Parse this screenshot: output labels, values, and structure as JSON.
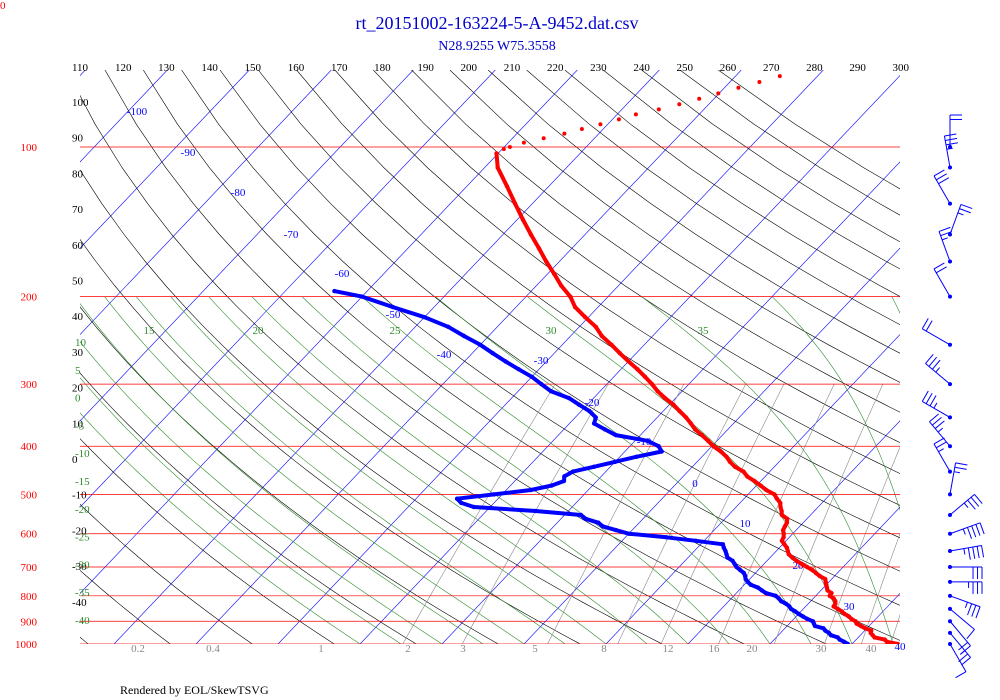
{
  "corner_label": "0",
  "footer": "Rendered by EOL/SkewTSVG",
  "chart_data": {
    "type": "skew-t",
    "title": "rt_20151002-163224-5-A-9452.dat.csv",
    "subtitle": "N28.9255 W75.3558",
    "colors": {
      "temperature": "#ff0000",
      "dewpoint": "#0000ff",
      "isobar": "#ff0000",
      "isotherm": "#0000ff",
      "dry_adiabat": "#000000",
      "moist_adiabat": "#2e8b2e",
      "mixing_ratio": "#888888",
      "wind_barb": "#0000ff"
    },
    "pressure_labels": [
      "100",
      "200",
      "300",
      "400",
      "500",
      "600",
      "700",
      "800",
      "900",
      "1000"
    ],
    "temp_labels": [
      "-100",
      "-90",
      "-80",
      "-70",
      "-60",
      "-50",
      "-40",
      "-30",
      "-20",
      "-10",
      "0",
      "10",
      "20",
      "30",
      "40"
    ],
    "theta_labels": [
      "110",
      "120",
      "130",
      "140",
      "150",
      "160",
      "170",
      "180",
      "190",
      "200",
      "210",
      "220",
      "230",
      "240",
      "250",
      "260",
      "270",
      "280",
      "290",
      "300"
    ],
    "left_labels": [
      "100",
      "90",
      "80",
      "70",
      "60",
      "50",
      "40",
      "30",
      "20",
      "10",
      "0",
      "-10",
      "-20",
      "-30",
      "-40"
    ],
    "moist_labels": [
      "15",
      "20",
      "25",
      "30",
      "35"
    ],
    "left_moist_labels": [
      "10",
      "5",
      "0",
      "-5",
      "-10",
      "-15",
      "-20",
      "-25",
      "-30",
      "-35",
      "-40"
    ],
    "mixing_labels": [
      "0.2",
      "0.4",
      "1",
      "2",
      "3",
      "5",
      "8",
      "12",
      "16",
      "20",
      "30",
      "40"
    ],
    "temperature_profile": [
      [
        1000,
        25.6
      ],
      [
        990,
        24
      ],
      [
        980,
        23.5
      ],
      [
        970,
        22
      ],
      [
        960,
        21.5
      ],
      [
        950,
        21
      ],
      [
        940,
        20.8
      ],
      [
        930,
        19.8
      ],
      [
        920,
        19
      ],
      [
        910,
        18.2
      ],
      [
        900,
        17.8
      ],
      [
        890,
        17
      ],
      [
        880,
        16.4
      ],
      [
        870,
        15.6
      ],
      [
        860,
        15
      ],
      [
        850,
        14.2
      ],
      [
        840,
        13.4
      ],
      [
        830,
        13.3
      ],
      [
        820,
        13
      ],
      [
        810,
        12.5
      ],
      [
        800,
        11.7
      ],
      [
        790,
        11.6
      ],
      [
        780,
        10.8
      ],
      [
        770,
        10.4
      ],
      [
        760,
        10
      ],
      [
        750,
        9.6
      ],
      [
        740,
        9.2
      ],
      [
        730,
        8.2
      ],
      [
        720,
        7.4
      ],
      [
        710,
        6.6
      ],
      [
        700,
        5.6
      ],
      [
        690,
        4.6
      ],
      [
        680,
        3.6
      ],
      [
        670,
        2.7
      ],
      [
        660,
        1.9
      ],
      [
        650,
        1.4
      ],
      [
        640,
        0.9
      ],
      [
        630,
        0.2
      ],
      [
        620,
        -0.5
      ],
      [
        610,
        -0.7
      ],
      [
        600,
        -1.1
      ],
      [
        590,
        -1.6
      ],
      [
        580,
        -1.8
      ],
      [
        570,
        -2
      ],
      [
        560,
        -2.4
      ],
      [
        550,
        -3.5
      ],
      [
        540,
        -4
      ],
      [
        530,
        -4.6
      ],
      [
        520,
        -5.1
      ],
      [
        510,
        -6
      ],
      [
        500,
        -6.8
      ],
      [
        490,
        -8.3
      ],
      [
        480,
        -9.5
      ],
      [
        470,
        -10.8
      ],
      [
        460,
        -12.2
      ],
      [
        450,
        -13.2
      ],
      [
        440,
        -14.8
      ],
      [
        430,
        -16
      ],
      [
        420,
        -17
      ],
      [
        410,
        -18.3
      ],
      [
        400,
        -19.8
      ],
      [
        390,
        -21.1
      ],
      [
        380,
        -22.5
      ],
      [
        370,
        -24
      ],
      [
        360,
        -25.2
      ],
      [
        350,
        -26.5
      ],
      [
        340,
        -28
      ],
      [
        330,
        -29.5
      ],
      [
        320,
        -31.3
      ],
      [
        310,
        -33
      ],
      [
        300,
        -34.5
      ],
      [
        290,
        -36.2
      ],
      [
        280,
        -38
      ],
      [
        270,
        -40
      ],
      [
        260,
        -42
      ],
      [
        250,
        -44
      ],
      [
        240,
        -46.2
      ],
      [
        230,
        -48
      ],
      [
        220,
        -50.4
      ],
      [
        210,
        -52.8
      ],
      [
        200,
        -54.6
      ],
      [
        190,
        -57
      ],
      [
        180,
        -59.2
      ],
      [
        170,
        -61.6
      ],
      [
        160,
        -64
      ],
      [
        150,
        -66.6
      ],
      [
        140,
        -69.3
      ],
      [
        130,
        -72.1
      ],
      [
        120,
        -75.1
      ],
      [
        110,
        -78.4
      ],
      [
        103,
        -80.2
      ]
    ],
    "temperature_strat": [
      [
        101,
        -79.8
      ],
      [
        100,
        -79.3
      ],
      [
        98,
        -78.1
      ],
      [
        96,
        -76.2
      ],
      [
        94,
        -74.2
      ],
      [
        92,
        -72.6
      ],
      [
        90,
        -70.9
      ],
      [
        88,
        -69.2
      ],
      [
        86,
        -67.7
      ],
      [
        84,
        -65.5
      ],
      [
        82,
        -63.6
      ],
      [
        80,
        -61.8
      ],
      [
        78,
        -60.1
      ],
      [
        76,
        -58.3
      ],
      [
        74,
        -56.4
      ],
      [
        72,
        -54.6
      ]
    ],
    "dewpoint_profile": [
      [
        1000,
        19.5
      ],
      [
        990,
        18.8
      ],
      [
        980,
        18
      ],
      [
        970,
        17.5
      ],
      [
        960,
        16.4
      ],
      [
        950,
        15.9
      ],
      [
        940,
        15.2
      ],
      [
        930,
        14.7
      ],
      [
        920,
        13.4
      ],
      [
        910,
        13
      ],
      [
        900,
        12.6
      ],
      [
        890,
        11.6
      ],
      [
        880,
        10.8
      ],
      [
        870,
        10
      ],
      [
        860,
        9.3
      ],
      [
        850,
        8.5
      ],
      [
        840,
        8
      ],
      [
        830,
        7.3
      ],
      [
        820,
        6.4
      ],
      [
        810,
        5.8
      ],
      [
        800,
        5.1
      ],
      [
        790,
        3.6
      ],
      [
        780,
        2.8
      ],
      [
        770,
        2
      ],
      [
        760,
        0.8
      ],
      [
        750,
        0.1
      ],
      [
        740,
        -0.5
      ],
      [
        730,
        -0.9
      ],
      [
        720,
        -1.4
      ],
      [
        710,
        -2.2
      ],
      [
        700,
        -3
      ],
      [
        690,
        -3.6
      ],
      [
        680,
        -4.2
      ],
      [
        670,
        -5.2
      ],
      [
        660,
        -5.7
      ],
      [
        650,
        -6.2
      ],
      [
        640,
        -6.8
      ],
      [
        630,
        -7.3
      ],
      [
        620,
        -11
      ],
      [
        610,
        -15
      ],
      [
        600,
        -20
      ],
      [
        590,
        -22
      ],
      [
        580,
        -24
      ],
      [
        570,
        -25
      ],
      [
        560,
        -27
      ],
      [
        550,
        -28
      ],
      [
        540,
        -34
      ],
      [
        530,
        -42
      ],
      [
        520,
        -44
      ],
      [
        510,
        -45
      ],
      [
        500,
        -41
      ],
      [
        490,
        -37
      ],
      [
        480,
        -35
      ],
      [
        470,
        -34
      ],
      [
        460,
        -34.5
      ],
      [
        450,
        -34
      ],
      [
        440,
        -32
      ],
      [
        430,
        -30
      ],
      [
        420,
        -28
      ],
      [
        410,
        -25.5
      ],
      [
        400,
        -26.5
      ],
      [
        390,
        -28.5
      ],
      [
        380,
        -33
      ],
      [
        370,
        -35
      ],
      [
        360,
        -37
      ],
      [
        350,
        -37.5
      ],
      [
        340,
        -39
      ],
      [
        330,
        -41
      ],
      [
        320,
        -43
      ],
      [
        310,
        -46
      ],
      [
        300,
        -48
      ],
      [
        290,
        -50
      ],
      [
        280,
        -52.5
      ],
      [
        270,
        -55
      ],
      [
        260,
        -57.5
      ],
      [
        250,
        -60
      ],
      [
        240,
        -63
      ],
      [
        230,
        -66
      ],
      [
        220,
        -70
      ],
      [
        210,
        -75
      ],
      [
        200,
        -80
      ],
      [
        195,
        -84
      ]
    ],
    "wind_barbs": [
      [
        1000,
        150,
        10
      ],
      [
        950,
        140,
        15
      ],
      [
        900,
        140,
        20
      ],
      [
        850,
        130,
        10
      ],
      [
        800,
        110,
        25
      ],
      [
        750,
        90,
        25
      ],
      [
        700,
        90,
        30
      ],
      [
        650,
        80,
        35
      ],
      [
        600,
        70,
        35
      ],
      [
        550,
        50,
        25
      ],
      [
        500,
        10,
        15
      ],
      [
        450,
        330,
        15
      ],
      [
        400,
        320,
        25
      ],
      [
        350,
        300,
        25
      ],
      [
        300,
        310,
        25
      ],
      [
        250,
        300,
        20
      ],
      [
        200,
        330,
        20
      ],
      [
        170,
        340,
        15
      ],
      [
        150,
        20,
        15
      ],
      [
        130,
        330,
        30
      ],
      [
        110,
        350,
        25
      ],
      [
        100,
        360,
        20
      ]
    ]
  }
}
